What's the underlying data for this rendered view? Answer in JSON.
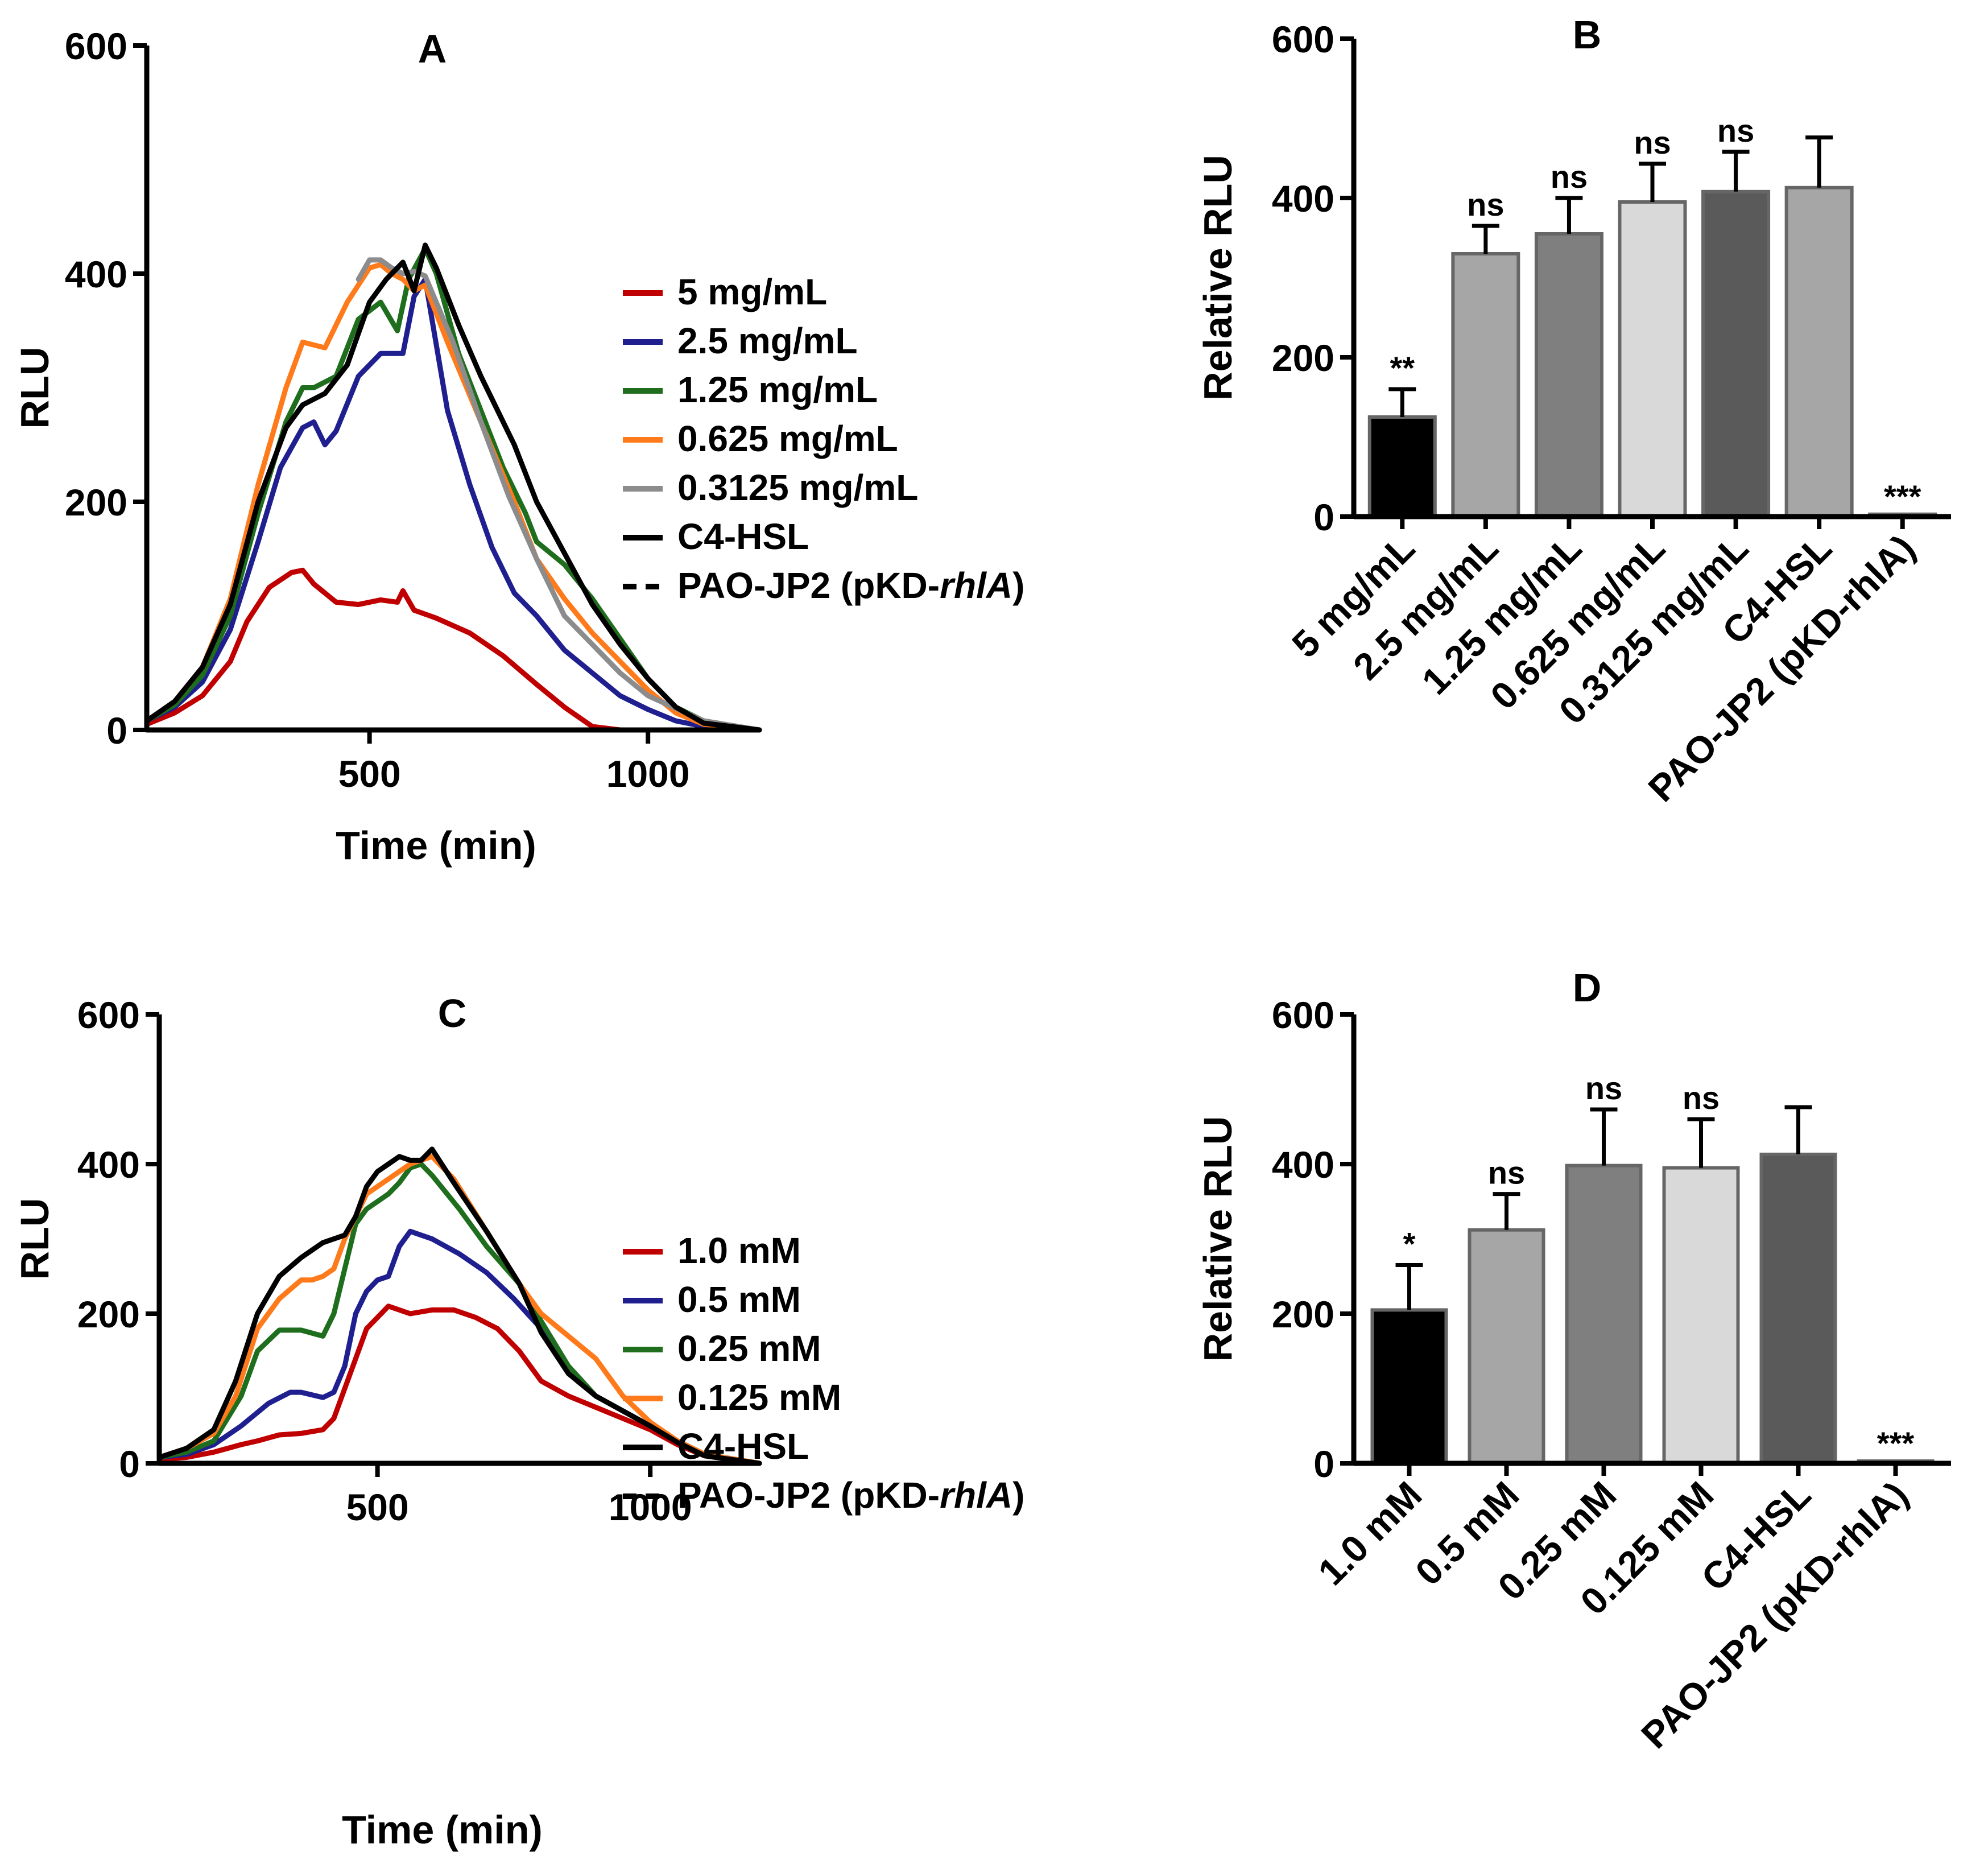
{
  "colors": {
    "red": "#c00000",
    "blue": "#1f1f8f",
    "green": "#1e6e1e",
    "orange": "#ff7a1a",
    "gray": "#8c8c8c",
    "black": "#000000"
  },
  "chart_data": [
    {
      "panel": "A",
      "type": "line",
      "title": "A",
      "xlabel": "Time (min)",
      "ylabel": "RLU",
      "xlim": [
        100,
        1200
      ],
      "ylim": [
        0,
        600
      ],
      "xticks": [
        500,
        1000
      ],
      "yticks": [
        0,
        200,
        400,
        600
      ],
      "legend_position": "right",
      "series": [
        {
          "name": "5 mg/mL",
          "color": "red",
          "dash": false,
          "x": [
            100,
            150,
            200,
            250,
            280,
            320,
            360,
            380,
            400,
            440,
            480,
            520,
            550,
            560,
            580,
            620,
            680,
            740,
            800,
            850,
            900,
            950,
            1000,
            1100,
            1200
          ],
          "y": [
            5,
            15,
            30,
            60,
            95,
            125,
            138,
            140,
            128,
            112,
            110,
            114,
            112,
            122,
            105,
            98,
            85,
            65,
            40,
            20,
            3,
            0,
            0,
            0,
            0
          ]
        },
        {
          "name": "2.5 mg/mL",
          "color": "blue",
          "dash": false,
          "x": [
            100,
            150,
            200,
            250,
            300,
            340,
            380,
            400,
            420,
            440,
            480,
            520,
            560,
            580,
            600,
            640,
            680,
            720,
            760,
            800,
            850,
            900,
            950,
            1000,
            1050,
            1100,
            1200
          ],
          "y": [
            8,
            20,
            42,
            88,
            165,
            230,
            265,
            270,
            250,
            262,
            310,
            330,
            330,
            380,
            395,
            280,
            215,
            160,
            120,
            100,
            70,
            50,
            30,
            18,
            8,
            3,
            0
          ]
        },
        {
          "name": "1.25 mg/mL",
          "color": "green",
          "dash": false,
          "x": [
            100,
            150,
            200,
            250,
            300,
            350,
            380,
            400,
            440,
            480,
            520,
            550,
            570,
            600,
            620,
            660,
            700,
            740,
            780,
            800,
            850,
            900,
            950,
            1000,
            1050,
            1100,
            1200
          ],
          "y": [
            8,
            22,
            48,
            100,
            190,
            270,
            300,
            300,
            310,
            360,
            375,
            350,
            395,
            422,
            400,
            330,
            280,
            230,
            190,
            165,
            145,
            115,
            80,
            45,
            20,
            8,
            0
          ]
        },
        {
          "name": "0.625 mg/mL",
          "color": "orange",
          "dash": false,
          "x": [
            100,
            150,
            200,
            250,
            300,
            350,
            380,
            420,
            460,
            500,
            520,
            540,
            560,
            580,
            600,
            640,
            700,
            760,
            800,
            850,
            900,
            950,
            1000,
            1050,
            1100,
            1200
          ],
          "y": [
            8,
            25,
            55,
            115,
            215,
            300,
            340,
            335,
            375,
            405,
            408,
            400,
            395,
            385,
            390,
            340,
            270,
            200,
            150,
            115,
            85,
            60,
            35,
            15,
            5,
            0
          ]
        },
        {
          "name": "0.3125 mg/mL",
          "color": "gray",
          "dash": false,
          "x": [
            480,
            500,
            520,
            540,
            560,
            580,
            600,
            650,
            700,
            750,
            800,
            850,
            900,
            950,
            1000,
            1100,
            1200
          ],
          "y": [
            395,
            412,
            412,
            405,
            400,
            402,
            398,
            340,
            270,
            205,
            150,
            100,
            75,
            50,
            30,
            8,
            0
          ]
        },
        {
          "name": "C4-HSL",
          "color": "black",
          "dash": false,
          "x": [
            100,
            150,
            200,
            250,
            300,
            350,
            380,
            420,
            460,
            500,
            530,
            560,
            580,
            600,
            620,
            660,
            700,
            760,
            800,
            850,
            900,
            950,
            1000,
            1050,
            1100,
            1200
          ],
          "y": [
            8,
            25,
            55,
            110,
            200,
            265,
            285,
            295,
            320,
            375,
            395,
            410,
            385,
            425,
            405,
            355,
            310,
            250,
            200,
            155,
            110,
            75,
            45,
            20,
            6,
            0
          ]
        },
        {
          "name": "PAO-JP2 (pKD-rhlA)",
          "color": "black",
          "dash": true,
          "x": [
            100,
            1200
          ],
          "y": [
            0,
            0
          ]
        }
      ]
    },
    {
      "panel": "B",
      "type": "bar",
      "title": "B",
      "xlabel": "",
      "ylabel": "Relative RLU",
      "ylim": [
        0,
        600
      ],
      "yticks": [
        0,
        200,
        400,
        600
      ],
      "categories": [
        "5 mg/mL",
        "2.5 mg/mL",
        "1.25 mg/mL",
        "0.625 mg/mL",
        "0.3125 mg/mL",
        "C4-HSL",
        "PAO-JP2 (pKD-rhlA)"
      ],
      "values": [
        125,
        330,
        355,
        395,
        408,
        413,
        3
      ],
      "errors": [
        35,
        35,
        45,
        48,
        50,
        63,
        0
      ],
      "significance": [
        "**",
        "ns",
        "ns",
        "ns",
        "ns",
        "",
        "***"
      ],
      "bar_colors": [
        "#000000",
        "#a6a6a6",
        "#7f7f7f",
        "#d9d9d9",
        "#5a5a5a",
        "#a6a6a6",
        "#a6a6a6"
      ]
    },
    {
      "panel": "C",
      "type": "line",
      "title": "C",
      "xlabel": "Time (min)",
      "ylabel": "RLU",
      "xlim": [
        100,
        1200
      ],
      "ylim": [
        0,
        600
      ],
      "xticks": [
        500,
        1000
      ],
      "yticks": [
        0,
        200,
        400,
        600
      ],
      "legend_position": "right",
      "series": [
        {
          "name": "1.0 mM",
          "color": "red",
          "dash": false,
          "x": [
            100,
            150,
            200,
            250,
            280,
            320,
            360,
            400,
            420,
            440,
            460,
            480,
            500,
            520,
            540,
            560,
            600,
            640,
            680,
            720,
            760,
            800,
            850,
            900,
            950,
            1000,
            1050,
            1100,
            1200
          ],
          "y": [
            5,
            8,
            15,
            25,
            30,
            38,
            40,
            45,
            60,
            100,
            140,
            180,
            195,
            210,
            205,
            200,
            205,
            205,
            195,
            180,
            150,
            110,
            90,
            75,
            60,
            45,
            25,
            10,
            0
          ]
        },
        {
          "name": "0.5 mM",
          "color": "blue",
          "dash": false,
          "x": [
            100,
            150,
            200,
            250,
            300,
            340,
            360,
            400,
            420,
            440,
            460,
            480,
            500,
            520,
            540,
            560,
            600,
            650,
            700,
            750,
            800,
            850,
            900,
            950,
            1000,
            1050,
            1100,
            1200
          ],
          "y": [
            8,
            12,
            25,
            50,
            80,
            95,
            95,
            88,
            95,
            130,
            200,
            230,
            245,
            250,
            290,
            310,
            300,
            280,
            255,
            220,
            180,
            130,
            90,
            70,
            50,
            30,
            12,
            0
          ]
        },
        {
          "name": "0.25 mM",
          "color": "green",
          "dash": false,
          "x": [
            100,
            150,
            200,
            250,
            280,
            320,
            360,
            400,
            420,
            440,
            460,
            480,
            500,
            520,
            540,
            560,
            580,
            600,
            650,
            700,
            760,
            800,
            850,
            900,
            950,
            1000,
            1050,
            1100,
            1200
          ],
          "y": [
            8,
            15,
            30,
            90,
            150,
            178,
            178,
            170,
            200,
            260,
            320,
            340,
            350,
            360,
            375,
            395,
            400,
            385,
            340,
            290,
            240,
            190,
            130,
            90,
            70,
            50,
            30,
            12,
            0
          ]
        },
        {
          "name": "0.125 mM",
          "color": "orange",
          "dash": false,
          "x": [
            100,
            150,
            200,
            240,
            280,
            320,
            360,
            380,
            400,
            420,
            440,
            480,
            520,
            560,
            600,
            640,
            700,
            760,
            800,
            850,
            900,
            950,
            1000,
            1050,
            1100,
            1200
          ],
          "y": [
            8,
            20,
            40,
            90,
            180,
            220,
            245,
            245,
            250,
            260,
            300,
            360,
            380,
            400,
            410,
            380,
            310,
            240,
            200,
            170,
            140,
            90,
            55,
            30,
            12,
            0
          ]
        },
        {
          "name": "C4-HSL",
          "color": "black",
          "dash": false,
          "x": [
            100,
            150,
            200,
            240,
            280,
            320,
            360,
            400,
            440,
            460,
            480,
            500,
            520,
            540,
            560,
            580,
            600,
            640,
            700,
            760,
            800,
            850,
            900,
            950,
            1000,
            1050,
            1100,
            1200
          ],
          "y": [
            8,
            20,
            45,
            110,
            200,
            250,
            275,
            295,
            305,
            330,
            370,
            390,
            400,
            410,
            405,
            405,
            420,
            375,
            310,
            240,
            175,
            120,
            90,
            70,
            50,
            28,
            10,
            0
          ]
        },
        {
          "name": "PAO-JP2 (pKD-rhlA)",
          "color": "black",
          "dash": true,
          "x": [
            100,
            1200
          ],
          "y": [
            0,
            0
          ]
        }
      ]
    },
    {
      "panel": "D",
      "type": "bar",
      "title": "D",
      "xlabel": "",
      "ylabel": "Relative RLU",
      "ylim": [
        0,
        600
      ],
      "yticks": [
        0,
        200,
        400,
        600
      ],
      "categories": [
        "1.0 mM",
        "0.5 mM",
        "0.25 mM",
        "0.125 mM",
        "C4-HSL",
        "PAO-JP2 (pKD-rhlA)"
      ],
      "values": [
        205,
        312,
        398,
        395,
        413,
        3
      ],
      "errors": [
        60,
        48,
        75,
        65,
        63,
        0
      ],
      "significance": [
        "*",
        "ns",
        "ns",
        "ns",
        "",
        "***"
      ],
      "bar_colors": [
        "#000000",
        "#a6a6a6",
        "#7f7f7f",
        "#d9d9d9",
        "#5a5a5a",
        "#a6a6a6"
      ]
    }
  ]
}
